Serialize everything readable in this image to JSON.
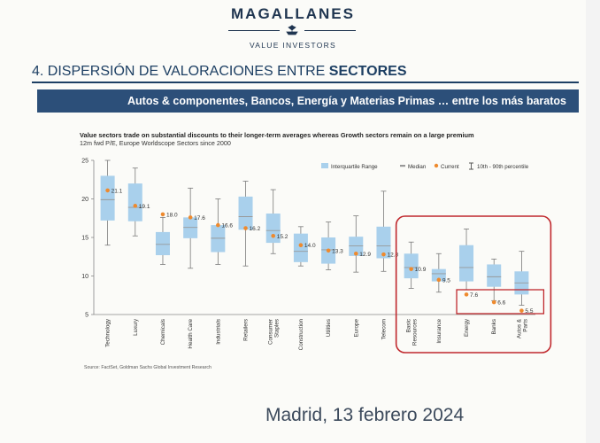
{
  "header": {
    "brand": "MAGALLANES",
    "tagline": "VALUE INVESTORS",
    "section_title": "4. DISPERSIÓN DE VALORACIONES ENTRE ",
    "section_title_emph": "SECTORES",
    "banner": "Autos & componentes, Bancos, Energía y Materias Primas … entre los más baratos"
  },
  "chart_data": {
    "type": "box",
    "title": "Value sectors trade on substantial discounts to their longer-term averages whereas Growth sectors remain on a large premium",
    "subtitle": "12m fwd P/E, Europe Worldscope Sectors since 2000",
    "source": "Source: FactSet, Goldman Sachs Global Investment Research",
    "ylim": [
      5,
      25
    ],
    "yticks": [
      5,
      10,
      15,
      20,
      25
    ],
    "legend": [
      "Interquartile Range",
      "Median",
      "Current",
      "10th - 90th percentile"
    ],
    "legend_position": "top-right",
    "colors": {
      "box": "#a9d0ec",
      "whisker": "#7a7a7a",
      "median": "#999999",
      "current": "#ee8a2e",
      "highlight": "#c0282d"
    },
    "categories": [
      "Technology",
      "Luxury",
      "Chemicals",
      "Health Care",
      "Industrials",
      "Retailers",
      "Consumer Staples",
      "Construction",
      "Utilities",
      "Europe",
      "Telecom",
      "Basic Resources",
      "Insurance",
      "Energy",
      "Banks",
      "Autos & Parts"
    ],
    "p10": [
      14.0,
      15.2,
      11.5,
      11.0,
      11.5,
      11.3,
      12.9,
      11.3,
      10.8,
      10.5,
      10.6,
      8.4,
      7.9,
      8.2,
      6.8,
      6.2
    ],
    "q1": [
      17.2,
      17.1,
      12.7,
      14.9,
      13.1,
      16.0,
      14.3,
      11.8,
      11.6,
      12.6,
      12.3,
      9.7,
      9.3,
      9.3,
      8.6,
      7.6
    ],
    "median": [
      19.9,
      18.9,
      14.1,
      16.3,
      14.9,
      17.7,
      15.9,
      13.2,
      13.4,
      13.9,
      13.9,
      11.1,
      10.3,
      11.1,
      9.9,
      9.1
    ],
    "q3": [
      23.0,
      22.0,
      15.7,
      17.6,
      16.6,
      20.3,
      18.1,
      15.5,
      15.0,
      15.1,
      16.4,
      12.9,
      10.9,
      14.0,
      11.5,
      10.6
    ],
    "p90": [
      25.0,
      24.0,
      17.6,
      21.4,
      20.0,
      22.3,
      21.2,
      16.4,
      17.0,
      17.8,
      21.0,
      14.4,
      12.9,
      16.1,
      12.2,
      13.2
    ],
    "current": [
      21.1,
      19.1,
      18.0,
      17.6,
      16.6,
      16.2,
      15.2,
      14.0,
      13.3,
      12.9,
      12.8,
      10.9,
      9.5,
      7.6,
      6.6,
      5.5
    ],
    "current_labels": [
      "21.1",
      "19.1",
      "18.0",
      "17.6",
      "16.6",
      "16.2",
      "15.2",
      "14.0",
      "13.3",
      "12.9",
      "12.8",
      "10.9",
      "9.5",
      "7.6",
      "6.6",
      "5.5"
    ]
  },
  "footer": {
    "text": "Madrid, 13 febrero 2024"
  }
}
